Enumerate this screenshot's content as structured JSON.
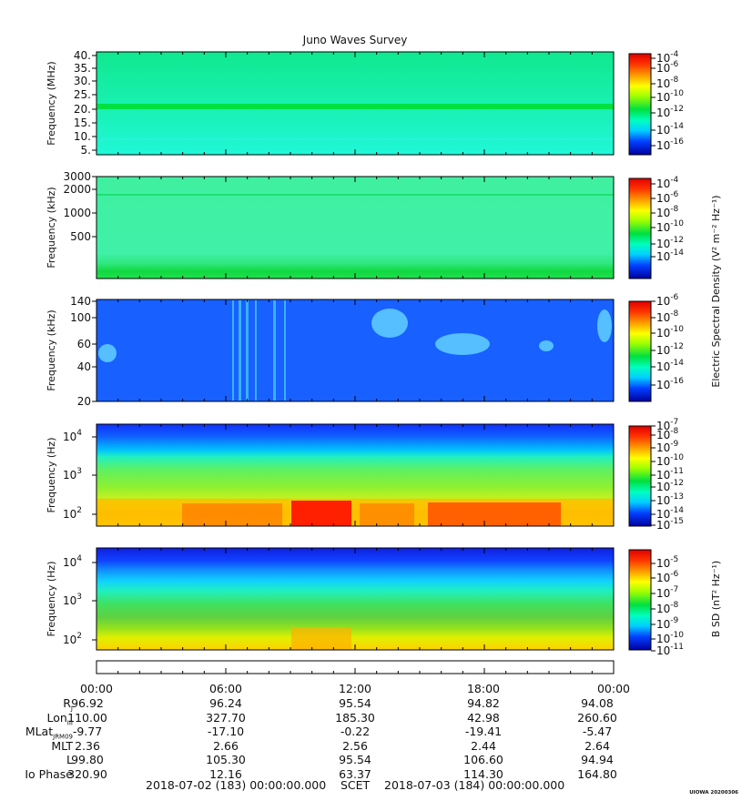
{
  "title": "Juno Waves Survey",
  "panels": [
    {
      "ylabel": "Frequency (MHz)",
      "yticks": [
        "40.",
        "35.",
        "30.",
        "25.",
        "20.",
        "15.",
        "10.",
        "5."
      ],
      "cbar_ticks": [
        "-4",
        "-6",
        "-8",
        "-10",
        "-12",
        "-14",
        "-16"
      ]
    },
    {
      "ylabel": "Frequency (kHz)",
      "yticks": [
        "3000",
        "2000",
        "1000",
        "500"
      ],
      "cbar_ticks": [
        "-4",
        "-6",
        "-8",
        "-10",
        "-12",
        "-14"
      ]
    },
    {
      "ylabel": "Frequency (kHz)",
      "yticks": [
        "140",
        "100",
        "60",
        "40",
        "20"
      ],
      "cbar_ticks": [
        "-6",
        "-8",
        "-10",
        "-12",
        "-14",
        "-16"
      ]
    },
    {
      "ylabel": "Frequency (Hz)",
      "yticks": [
        "4",
        "3",
        "2"
      ],
      "cbar_ticks": [
        "-7",
        "-8",
        "-9",
        "-10",
        "-11",
        "-12",
        "-13",
        "-14",
        "-15"
      ]
    },
    {
      "ylabel": "Frequency (Hz)",
      "yticks": [
        "4",
        "3",
        "2"
      ],
      "cbar_ticks": [
        "-5",
        "-6",
        "-7",
        "-8",
        "-9",
        "-10",
        "-11"
      ]
    }
  ],
  "colorbar_labels": {
    "electric": "Electric Spectral Density (V² m⁻² Hz⁻¹)",
    "magnetic": "B SD (nT² Hz⁻¹)"
  },
  "colors": {
    "scale": [
      "#0000a0",
      "#0020ff",
      "#00a0ff",
      "#00ffff",
      "#00ff80",
      "#00e000",
      "#a0ff00",
      "#ffff00",
      "#ffa000",
      "#ff3000",
      "#e00000"
    ]
  },
  "ephemeris": {
    "times": [
      "00:00",
      "06:00",
      "12:00",
      "18:00",
      "00:00"
    ],
    "rows": [
      {
        "label": "R",
        "sub": "J",
        "values": [
          "96.92",
          "96.24",
          "95.54",
          "94.82",
          "94.08"
        ]
      },
      {
        "label": "Lon",
        "sub": "III",
        "values": [
          "110.00",
          "327.70",
          "185.30",
          "42.98",
          "260.60"
        ]
      },
      {
        "label": "MLat",
        "sub": "JRM09",
        "values": [
          "-9.77",
          "-17.10",
          "-0.22",
          "-19.41",
          "-5.47"
        ]
      },
      {
        "label": "MLT",
        "sub": "",
        "values": [
          "2.36",
          "2.66",
          "2.56",
          "2.44",
          "2.64"
        ]
      },
      {
        "label": "L",
        "sub": "",
        "values": [
          "99.80",
          "105.30",
          "95.54",
          "106.60",
          "94.94"
        ]
      },
      {
        "label": "Io Phase",
        "sub": "",
        "values": [
          "320.90",
          "12.16",
          "63.37",
          "114.30",
          "164.80"
        ]
      }
    ]
  },
  "footer": {
    "start": "2018-07-02 (183) 00:00:00.000",
    "mid": "SCET",
    "end": "2018-07-03 (184) 00:00:00.000"
  },
  "stamp": "UIOWA 20200306",
  "chart_data": [
    {
      "type": "heatmap",
      "title": "Juno Waves Survey",
      "ylabel": "Frequency (MHz)",
      "ylim": [
        3,
        41
      ],
      "x": [
        "00:00",
        "06:00",
        "12:00",
        "18:00",
        "00:00"
      ],
      "colorbar": {
        "range_log10": [
          -17,
          -4
        ],
        "label": "Electric Spectral Density (V² m⁻² Hz⁻¹)"
      },
      "features": [
        "uniform background near 1e-12",
        "narrow band near 21 MHz at ~1e-10"
      ]
    },
    {
      "type": "heatmap",
      "ylabel": "Frequency (kHz)",
      "yscale": "log",
      "ylim": [
        140,
        3000
      ],
      "colorbar": {
        "range_log10": [
          -15,
          -4
        ],
        "label": "Electric Spectral Density (V² m⁻² Hz⁻¹)"
      },
      "features": [
        "background near 1e-11",
        "enhanced band below ~200 kHz near 1e-10",
        "faint line near 1700 kHz"
      ]
    },
    {
      "type": "heatmap",
      "ylabel": "Frequency (kHz)",
      "ylim": [
        20,
        140
      ],
      "colorbar": {
        "range_log10": [
          -16,
          -6
        ],
        "label": "Electric Spectral Density (V² m⁻² Hz⁻¹)"
      },
      "features": [
        "background near 1e-14",
        "bursts near 07:00 and 09:00 spanning 20-140 kHz",
        "patches near 05:00-06:00 at ~90 kHz and 15:00-17:00 at ~55 kHz"
      ]
    },
    {
      "type": "heatmap",
      "ylabel": "Frequency (Hz)",
      "yscale": "log",
      "ylim": [
        50,
        20000
      ],
      "colorbar": {
        "range_log10": [
          -15,
          -7
        ],
        "label": "Electric Spectral Density (V² m⁻² Hz⁻¹)"
      },
      "features": [
        "intense emission below ~250 Hz, strongest 09:00-12:00 and 15:00-21:00 near 1e-8",
        "upper cutoff near 2-3 kHz"
      ]
    },
    {
      "type": "heatmap",
      "ylabel": "Frequency (Hz)",
      "yscale": "log",
      "ylim": [
        50,
        20000
      ],
      "colorbar": {
        "range_log10": [
          -11,
          -4.5
        ],
        "label": "B SD (nT² Hz⁻¹)"
      },
      "features": [
        "power decreasing with frequency from ~1e-6 at 50 Hz to ~1e-11 at 20 kHz"
      ]
    }
  ]
}
